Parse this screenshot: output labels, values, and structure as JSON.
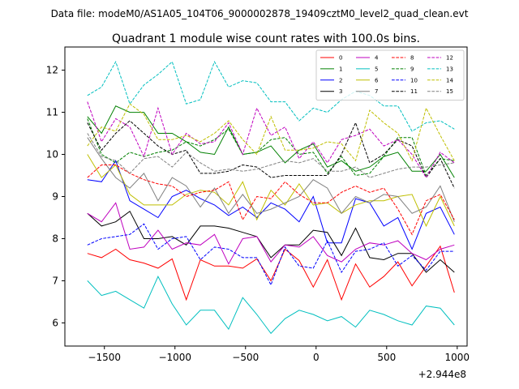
{
  "chart_data": {
    "type": "line",
    "suptitle": "Data file: modeM0/AS1A05_104T06_9000002878_19409cztM0_level2_quad_clean.evt",
    "title": "Quadrant 1 module wise count rates with 100.0s bins.",
    "x_offset_label": "+2.944e8",
    "xlim": [
      -1780,
      1070
    ],
    "ylim": [
      5.45,
      12.55
    ],
    "xticks": [
      -1500,
      -1000,
      -500,
      0,
      500,
      1000
    ],
    "xtick_labels": [
      "−1500",
      "−1000",
      "−500",
      "0",
      "500",
      "1000"
    ],
    "yticks": [
      6,
      7,
      8,
      9,
      10,
      11,
      12
    ],
    "ytick_labels": [
      "6",
      "7",
      "8",
      "9",
      "10",
      "11",
      "12"
    ],
    "x": [
      -1620,
      -1520,
      -1420,
      -1320,
      -1220,
      -1120,
      -1020,
      -920,
      -820,
      -720,
      -620,
      -520,
      -420,
      -320,
      -220,
      -120,
      -20,
      80,
      180,
      280,
      380,
      480,
      580,
      680,
      780,
      880,
      980
    ],
    "legend": {
      "location": "upper right",
      "ncol": 4
    },
    "series": [
      {
        "name": "0",
        "color": "#ff0000",
        "dash": "solid",
        "values": [
          7.65,
          7.55,
          7.75,
          7.5,
          7.42,
          7.3,
          7.52,
          6.55,
          7.5,
          7.35,
          7.35,
          7.3,
          7.52,
          7.0,
          7.75,
          7.48,
          6.85,
          7.5,
          6.55,
          7.4,
          6.85,
          7.1,
          7.45,
          6.88,
          7.35,
          7.82,
          6.72
        ]
      },
      {
        "name": "1",
        "color": "#008000",
        "dash": "solid",
        "values": [
          10.9,
          10.5,
          11.15,
          11.0,
          11.0,
          10.5,
          10.5,
          10.3,
          10.05,
          10.0,
          10.65,
          10.0,
          10.05,
          10.2,
          9.8,
          10.1,
          10.25,
          9.7,
          9.85,
          9.6,
          9.7,
          9.95,
          10.05,
          9.6,
          9.6,
          10.0,
          9.45
        ]
      },
      {
        "name": "2",
        "color": "#0000ff",
        "dash": "solid",
        "values": [
          9.4,
          9.35,
          9.85,
          8.9,
          8.7,
          8.5,
          9.0,
          9.15,
          8.95,
          8.8,
          8.55,
          8.75,
          8.5,
          8.85,
          8.7,
          8.4,
          9.0,
          7.9,
          7.9,
          8.95,
          8.85,
          8.3,
          8.5,
          7.75,
          8.6,
          8.75,
          8.1
        ]
      },
      {
        "name": "3",
        "color": "#000000",
        "dash": "solid",
        "values": [
          8.6,
          8.3,
          8.4,
          8.65,
          8.0,
          8.0,
          8.05,
          7.85,
          8.3,
          8.3,
          8.25,
          8.15,
          8.05,
          7.55,
          7.85,
          7.85,
          8.2,
          8.15,
          7.6,
          8.25,
          7.55,
          7.5,
          7.65,
          7.65,
          7.2,
          7.5,
          7.2
        ]
      },
      {
        "name": "4",
        "color": "#bf00bf",
        "dash": "solid",
        "values": [
          8.6,
          8.4,
          8.85,
          7.75,
          7.8,
          8.2,
          7.75,
          7.9,
          7.85,
          8.1,
          7.4,
          8.0,
          8.05,
          7.45,
          7.85,
          7.8,
          8.05,
          7.6,
          7.45,
          7.75,
          7.9,
          7.85,
          7.95,
          7.65,
          7.5,
          7.75,
          7.85
        ]
      },
      {
        "name": "5",
        "color": "#00bfbf",
        "dash": "solid",
        "values": [
          7.0,
          6.65,
          6.75,
          6.55,
          6.35,
          7.1,
          6.45,
          5.95,
          6.3,
          6.3,
          5.85,
          6.6,
          6.2,
          5.75,
          6.1,
          6.3,
          6.2,
          6.05,
          6.15,
          5.9,
          6.3,
          6.2,
          6.05,
          5.95,
          6.4,
          6.35,
          5.95
        ]
      },
      {
        "name": "6",
        "color": "#bfbf00",
        "dash": "solid",
        "values": [
          10.0,
          9.45,
          9.75,
          9.05,
          8.8,
          8.8,
          8.8,
          9.05,
          9.15,
          9.1,
          8.8,
          9.35,
          8.45,
          9.15,
          8.8,
          9.3,
          8.8,
          8.85,
          8.6,
          8.8,
          8.9,
          8.9,
          9.0,
          9.05,
          8.3,
          9.0,
          8.3
        ]
      },
      {
        "name": "7",
        "color": "#808080",
        "dash": "solid",
        "values": [
          10.4,
          9.9,
          9.45,
          9.2,
          9.55,
          8.9,
          9.45,
          9.25,
          8.75,
          9.2,
          8.6,
          9.05,
          8.6,
          8.7,
          8.85,
          9.0,
          9.4,
          9.2,
          8.6,
          9.0,
          8.85,
          9.05,
          9.0,
          8.6,
          8.75,
          9.25,
          8.4
        ]
      },
      {
        "name": "8",
        "color": "#ff0000",
        "dash": "dashed",
        "values": [
          9.45,
          9.75,
          9.75,
          9.55,
          9.4,
          9.3,
          9.25,
          9.0,
          9.1,
          9.15,
          9.35,
          8.45,
          9.0,
          8.95,
          9.35,
          9.05,
          8.85,
          8.85,
          9.1,
          9.25,
          9.1,
          9.2,
          8.7,
          8.1,
          8.9,
          9.05,
          8.45
        ]
      },
      {
        "name": "9",
        "color": "#008000",
        "dash": "dashed",
        "values": [
          10.85,
          10.0,
          9.8,
          10.05,
          9.95,
          10.05,
          10.1,
          10.3,
          10.2,
          10.35,
          10.6,
          10.0,
          10.05,
          10.35,
          10.4,
          10.0,
          10.05,
          9.55,
          9.95,
          9.5,
          9.55,
          9.95,
          10.4,
          10.4,
          9.5,
          9.9,
          9.85
        ]
      },
      {
        "name": "10",
        "color": "#0000ff",
        "dash": "dashed",
        "values": [
          7.85,
          8.0,
          8.05,
          8.1,
          8.35,
          7.75,
          8.0,
          8.05,
          7.5,
          7.8,
          7.75,
          7.55,
          7.55,
          6.9,
          7.8,
          7.35,
          7.3,
          7.95,
          7.2,
          7.7,
          7.75,
          7.9,
          7.35,
          7.6,
          7.25,
          7.7,
          7.7
        ]
      },
      {
        "name": "11",
        "color": "#000000",
        "dash": "dashed",
        "values": [
          10.75,
          10.1,
          10.5,
          10.8,
          10.5,
          10.2,
          10.0,
          10.1,
          9.55,
          9.55,
          9.6,
          9.75,
          9.7,
          9.45,
          9.5,
          9.5,
          9.5,
          9.5,
          10.0,
          10.75,
          9.8,
          10.0,
          10.35,
          10.2,
          9.45,
          9.9,
          9.2
        ]
      },
      {
        "name": "12",
        "color": "#bf00bf",
        "dash": "dashed",
        "values": [
          11.25,
          10.3,
          10.85,
          10.65,
          9.95,
          11.1,
          10.0,
          10.5,
          10.25,
          10.3,
          10.75,
          10.0,
          11.1,
          10.45,
          10.65,
          9.9,
          10.3,
          9.8,
          10.35,
          10.45,
          10.6,
          10.2,
          10.35,
          10.0,
          9.45,
          10.05,
          9.8
        ]
      },
      {
        "name": "13",
        "color": "#00bfbf",
        "dash": "dashed",
        "values": [
          11.4,
          11.6,
          12.2,
          11.2,
          11.65,
          11.9,
          12.2,
          11.2,
          11.3,
          12.2,
          11.6,
          11.75,
          11.7,
          11.25,
          11.25,
          10.8,
          11.1,
          11.0,
          11.3,
          11.5,
          11.4,
          11.15,
          11.15,
          10.55,
          10.75,
          10.8,
          10.6
        ]
      },
      {
        "name": "14",
        "color": "#bfbf00",
        "dash": "dashed",
        "values": [
          10.2,
          10.65,
          10.55,
          11.2,
          10.95,
          10.35,
          10.35,
          10.45,
          10.3,
          10.5,
          10.8,
          10.35,
          10.0,
          10.9,
          10.1,
          10.1,
          10.15,
          10.3,
          10.25,
          9.85,
          11.05,
          10.75,
          10.5,
          9.85,
          11.1,
          10.45,
          9.85
        ]
      },
      {
        "name": "15",
        "color": "#808080",
        "dash": "dashed",
        "values": [
          10.5,
          9.95,
          9.85,
          9.55,
          9.9,
          9.95,
          9.7,
          10.05,
          9.8,
          9.6,
          9.65,
          9.6,
          9.65,
          9.75,
          9.85,
          9.8,
          9.9,
          9.6,
          9.6,
          9.7,
          9.45,
          9.55,
          9.65,
          9.7,
          9.7,
          9.75,
          9.8
        ]
      }
    ]
  }
}
